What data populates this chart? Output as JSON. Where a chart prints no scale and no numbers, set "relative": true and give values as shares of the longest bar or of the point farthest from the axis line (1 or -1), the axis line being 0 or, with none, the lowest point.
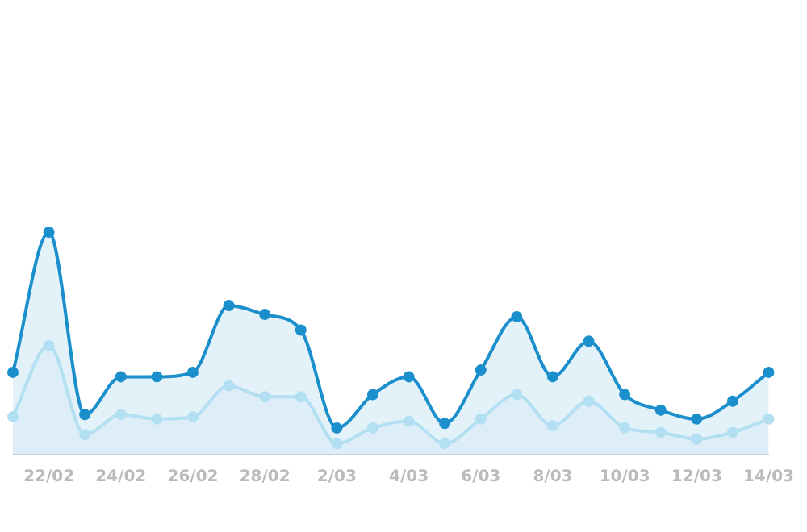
{
  "chart_data": {
    "type": "area",
    "relative": true,
    "categories": [
      null,
      "22/02",
      null,
      "24/02",
      null,
      "26/02",
      null,
      "28/02",
      null,
      "2/03",
      null,
      "4/03",
      null,
      "6/03",
      null,
      "8/03",
      null,
      "10/03",
      null,
      "12/03",
      null,
      "14/03"
    ],
    "series": [
      {
        "color": "#1a8fcc",
        "values": [
          0.37,
          1,
          0.18,
          0.35,
          0.35,
          0.37,
          0.67,
          0.63,
          0.56,
          0.12,
          0.27,
          0.35,
          0.14,
          0.38,
          0.62,
          0.35,
          0.51,
          0.27,
          0.2,
          0.16,
          0.24,
          0.37
        ]
      },
      {
        "color": "#b3dff3",
        "values": [
          0.17,
          0.49,
          0.09,
          0.18,
          0.16,
          0.17,
          0.31,
          0.26,
          0.26,
          0.05,
          0.12,
          0.15,
          0.05,
          0.16,
          0.27,
          0.13,
          0.24,
          0.12,
          0.1,
          0.07,
          0.1,
          0.16
        ]
      }
    ],
    "legend": false,
    "marker": "circle"
  }
}
